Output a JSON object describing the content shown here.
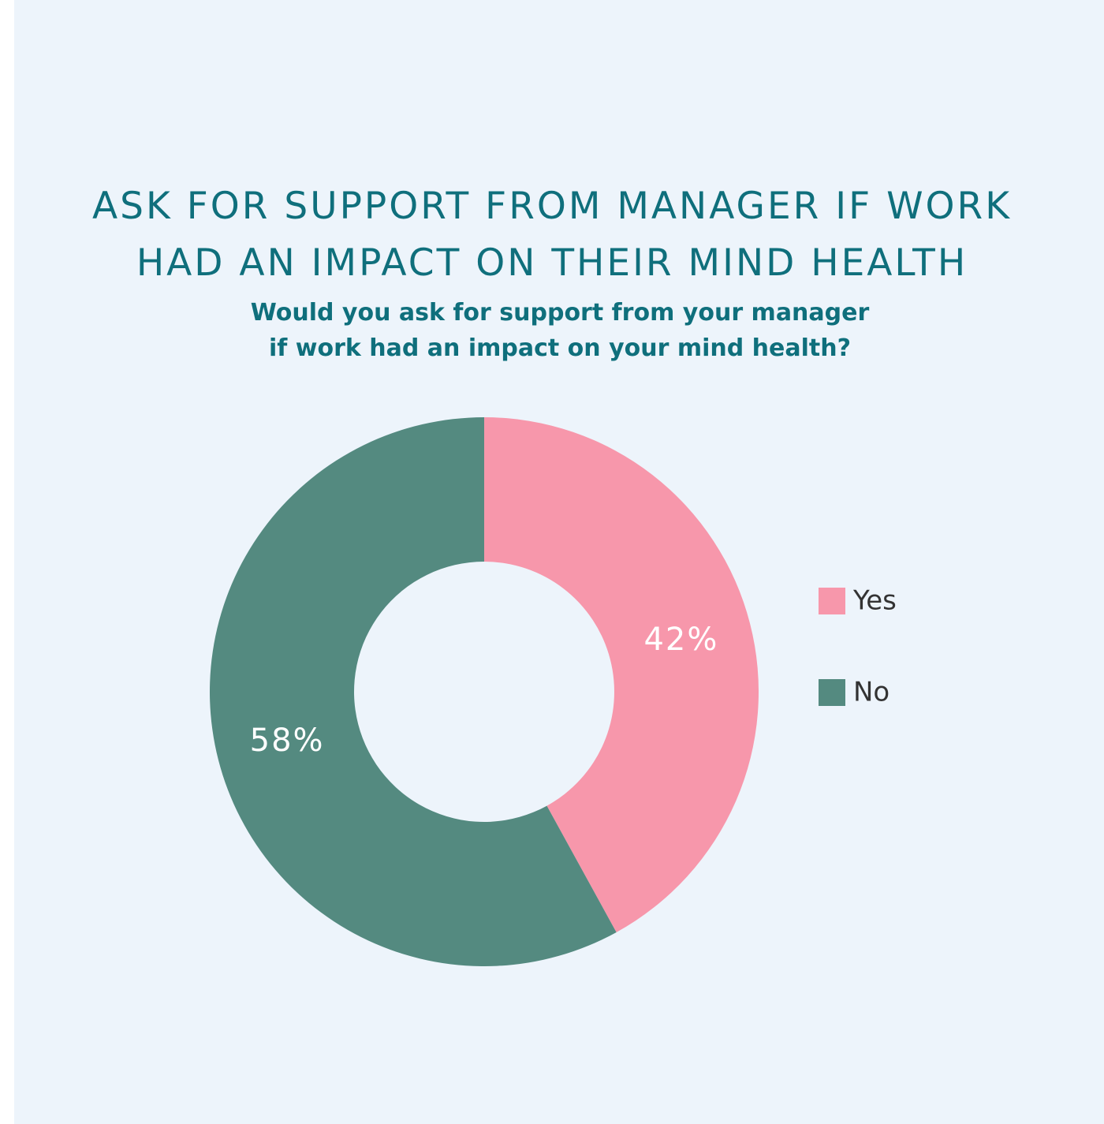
{
  "title_lines": [
    "ASK FOR SUPPORT FROM MANAGER IF WORK",
    "HAD AN IMPACT ON THEIR MIND HEALTH"
  ],
  "subtitle_lines": [
    "Would you ask for support from your manager",
    "if work had an impact on your mind health?"
  ],
  "colors": {
    "background": "#edf4fb",
    "title": "#0f6f7c",
    "yes": "#f797ab",
    "no": "#548a80"
  },
  "chart_data": {
    "type": "pie",
    "donut": true,
    "title": "ASK FOR SUPPORT FROM MANAGER IF WORK HAD AN IMPACT ON THEIR MIND HEALTH",
    "subtitle": "Would you ask for support from your manager if work had an impact on your mind health?",
    "categories": [
      "Yes",
      "No"
    ],
    "values": [
      42,
      58
    ],
    "labels": [
      "42%",
      "58%"
    ],
    "colors": [
      "#f797ab",
      "#548a80"
    ],
    "start": "12 o'clock, clockwise",
    "legend": "right"
  }
}
